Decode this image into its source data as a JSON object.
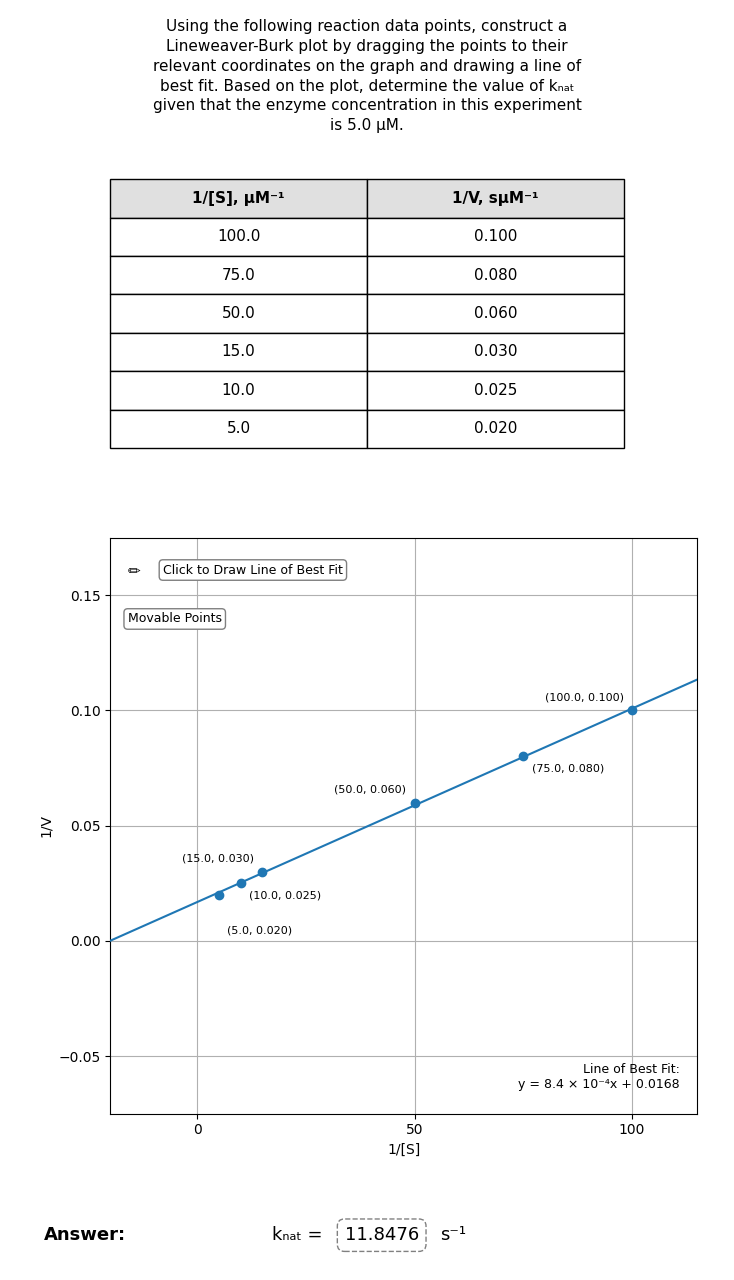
{
  "chart_data": {
    "type": "scatter",
    "title": "Using the following reaction data points, construct a\nLineweaver-Burk plot by dragging the points to their\nrelevant coordinates on the graph and drawing a line of\nbest fit. Based on the plot, determine the value of kₙₐₜ\ngiven that the enzyme concentration in this experiment\nis 5.0 μM.",
    "table": {
      "columns": [
        "1/[S], μM⁻¹",
        "1/V, sμM⁻¹"
      ],
      "rows": [
        [
          "100.0",
          "0.100"
        ],
        [
          "75.0",
          "0.080"
        ],
        [
          "50.0",
          "0.060"
        ],
        [
          "15.0",
          "0.030"
        ],
        [
          "10.0",
          "0.025"
        ],
        [
          "5.0",
          "0.020"
        ]
      ]
    },
    "xlabel": "1/[S]",
    "ylabel": "1/V",
    "xlim": [
      -20,
      115
    ],
    "ylim": [
      -0.075,
      0.175
    ],
    "xticks": [
      0,
      50,
      100
    ],
    "yticks": [
      {
        "value": -0.05,
        "label": "−0.05"
      },
      {
        "value": 0,
        "label": "0.00"
      },
      {
        "value": 0.05,
        "label": "0.05"
      },
      {
        "value": 0.1,
        "label": "0.10"
      },
      {
        "value": 0.15,
        "label": "0.15"
      }
    ],
    "grid": true,
    "series": [
      {
        "type": "scatter",
        "marker": "o",
        "x": [
          100.0,
          75.0,
          50.0,
          15.0,
          10.0,
          5.0
        ],
        "values": [
          0.1,
          0.08,
          0.06,
          0.03,
          0.025,
          0.02
        ],
        "data_labels": true,
        "value_labels": [
          "(100.0, 0.100)",
          "(75.0, 0.080)",
          "(50.0, 0.060)",
          "(15.0, 0.030)",
          "(10.0, 0.025)",
          "(5.0, 0.020)"
        ]
      },
      {
        "type": "line",
        "line_style": "solid",
        "x": [
          -20,
          115
        ],
        "values": [
          0.0,
          0.1134
        ]
      }
    ],
    "annotations": {
      "icon": "✏",
      "button": "Click to Draw Line of Best Fit",
      "toggle": "Movable Points",
      "fit_label": "Line of Best Fit:\ny = 8.4 × 10⁻⁴x + 0.0168"
    },
    "answer": {
      "label": "Answer:",
      "quantity": "kₙₐₜ =",
      "value": "11.8476",
      "unit": "s⁻¹"
    }
  }
}
